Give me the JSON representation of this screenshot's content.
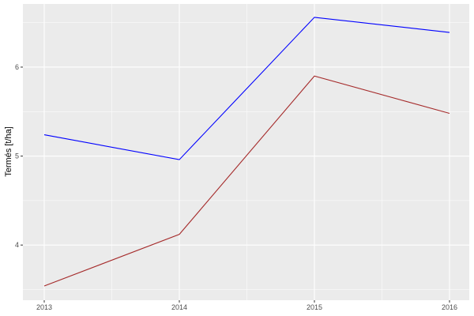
{
  "chart_data": {
    "type": "line",
    "title": "",
    "xlabel": "",
    "ylabel": "Termés [t/ha]",
    "x": [
      2013,
      2014,
      2015,
      2016
    ],
    "x_tick_labels": [
      "2013",
      "2014",
      "2015",
      "2016"
    ],
    "y_tick_labels": [
      "4",
      "5",
      "6"
    ],
    "y_ticks": [
      4,
      5,
      6
    ],
    "ylim": [
      3.38,
      6.71
    ],
    "grid": true,
    "legend": "none",
    "series": [
      {
        "color": "#0000ff",
        "values": [
          5.24,
          4.96,
          6.56,
          6.39
        ]
      },
      {
        "color": "#a52a2a",
        "values": [
          3.54,
          4.12,
          5.9,
          5.48
        ]
      }
    ],
    "colors": {
      "panel": "#ebebeb",
      "grid": "#ffffff"
    }
  }
}
